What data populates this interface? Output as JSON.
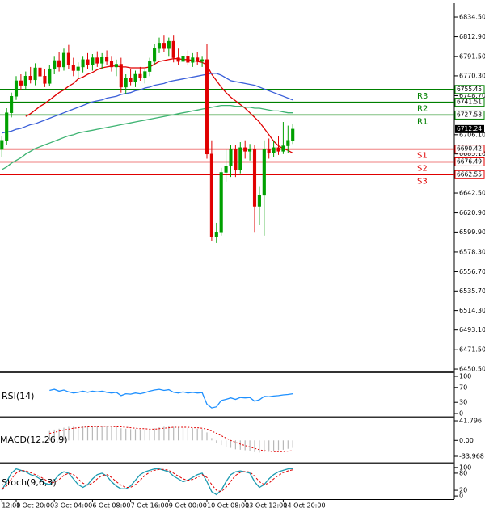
{
  "chart_data": [
    {
      "type": "candlestick",
      "categories": [
        "12:00",
        null,
        null,
        "1 Oct 20:00",
        null,
        null,
        null,
        null,
        null,
        null,
        null,
        "3 Oct 04:00",
        null,
        null,
        null,
        null,
        null,
        null,
        null,
        "6 Oct 08:00",
        null,
        null,
        null,
        null,
        null,
        null,
        null,
        "7 Oct 16:00",
        null,
        null,
        null,
        null,
        null,
        null,
        null,
        "9 Oct 00:00",
        null,
        null,
        null,
        null,
        null,
        null,
        null,
        "10 Oct 08:00",
        null,
        null,
        null,
        null,
        null,
        null,
        null,
        "13 Oct 12:00",
        null,
        null,
        null,
        null,
        null,
        null,
        null,
        "14 Oct 20:00",
        null,
        null
      ],
      "open": [
        6690,
        6700,
        6730,
        6748,
        6765,
        6760,
        6770,
        6766,
        6779,
        6770,
        6762,
        6778,
        6787,
        6780,
        6795,
        6782,
        6776,
        6780,
        6788,
        6782,
        6790,
        6784,
        6791,
        6786,
        6780,
        6783,
        6758,
        6768,
        6764,
        6772,
        6768,
        6775,
        6786,
        6800,
        6806,
        6800,
        6808,
        6790,
        6786,
        6792,
        6785,
        6790,
        6786,
        6788,
        6685,
        6595,
        6600,
        6665,
        6672,
        6690,
        6668,
        6692,
        6688,
        6690,
        6628,
        6640,
        6690,
        6686,
        6692,
        6688,
        6694,
        6700
      ],
      "high": [
        6705,
        6735,
        6752,
        6770,
        6772,
        6775,
        6780,
        6784,
        6786,
        6778,
        6782,
        6792,
        6796,
        6800,
        6804,
        6790,
        6785,
        6792,
        6795,
        6794,
        6797,
        6795,
        6798,
        6792,
        6788,
        6790,
        6772,
        6778,
        6776,
        6780,
        6778,
        6790,
        6805,
        6812,
        6815,
        6812,
        6815,
        6800,
        6796,
        6798,
        6795,
        6796,
        6792,
        6805,
        6700,
        6610,
        6670,
        6690,
        6695,
        6695,
        6698,
        6700,
        6696,
        6695,
        6650,
        6700,
        6702,
        6700,
        6705,
        6720,
        6716,
        6718
      ],
      "low": [
        6682,
        6695,
        6725,
        6744,
        6755,
        6756,
        6762,
        6760,
        6765,
        6758,
        6759,
        6772,
        6775,
        6776,
        6778,
        6770,
        6768,
        6774,
        6778,
        6776,
        6780,
        6778,
        6782,
        6775,
        6770,
        6752,
        6750,
        6760,
        6758,
        6765,
        6762,
        6770,
        6782,
        6795,
        6796,
        6792,
        6785,
        6782,
        6780,
        6782,
        6780,
        6782,
        6780,
        6680,
        6590,
        6588,
        6596,
        6655,
        6660,
        6660,
        6664,
        6680,
        6678,
        6600,
        6608,
        6596,
        6680,
        6682,
        6684,
        6685,
        6686,
        6696
      ],
      "close": [
        6700,
        6730,
        6748,
        6765,
        6760,
        6770,
        6766,
        6779,
        6770,
        6762,
        6778,
        6787,
        6780,
        6795,
        6782,
        6776,
        6780,
        6788,
        6782,
        6790,
        6784,
        6791,
        6786,
        6780,
        6783,
        6758,
        6768,
        6764,
        6772,
        6768,
        6775,
        6786,
        6800,
        6806,
        6800,
        6808,
        6790,
        6786,
        6792,
        6785,
        6790,
        6786,
        6788,
        6685,
        6595,
        6600,
        6665,
        6672,
        6690,
        6668,
        6692,
        6688,
        6690,
        6628,
        6640,
        6690,
        6686,
        6692,
        6688,
        6694,
        6700,
        6712.24
      ],
      "up_color": "#00a000",
      "down_color": "#e00000",
      "series": [
        {
          "color": "#e00000",
          "values": [
            null,
            null,
            null,
            null,
            null,
            6726,
            6729,
            6733,
            6737,
            6740,
            6744,
            6748,
            6752,
            6755,
            6759,
            6762,
            6767,
            6769,
            6772,
            6774,
            6777,
            6779,
            6780,
            6781,
            6781,
            6780,
            6780,
            6779,
            6779,
            6779,
            6779,
            6780,
            6783,
            6786,
            6787,
            6788,
            6789,
            6789,
            6788,
            6788,
            6787,
            6786,
            6785,
            6782,
            6772,
            6765,
            6758,
            6752,
            6747,
            6743,
            6739,
            6735,
            6730,
            6725,
            6720,
            6713,
            6706,
            6699,
            6694,
            6691,
            6689,
            6686
          ]
        },
        {
          "color": "#3a5fd9",
          "values": [
            6708,
            6709,
            6710,
            6712,
            6713,
            6715,
            6717,
            6718,
            6720,
            6722,
            6724,
            6726,
            6728,
            6730,
            6732,
            6734,
            6736,
            6738,
            6740,
            6742,
            6743,
            6744,
            6746,
            6747,
            6748,
            6750,
            6751,
            6752,
            6754,
            6755,
            6757,
            6758,
            6760,
            6761,
            6762,
            6764,
            6765,
            6766,
            6767,
            6768,
            6769,
            6770,
            6771,
            6772,
            6773,
            6773,
            6771,
            6768,
            6765,
            6764,
            6763,
            6762,
            6761,
            6760,
            6758,
            6756,
            6754,
            6752,
            6750,
            6748,
            6746,
            6744
          ]
        },
        {
          "color": "#3cb371",
          "values": [
            6668,
            6671,
            6675,
            6678,
            6681,
            6685,
            6688,
            6691,
            6693,
            6695,
            6697,
            6699,
            6701,
            6703,
            6705,
            6706,
            6708,
            6709,
            6710,
            6711,
            6712,
            6713,
            6714,
            6715,
            6716,
            6717,
            6718,
            6719,
            6720,
            6721,
            6722,
            6723,
            6724,
            6725,
            6726,
            6727,
            6728,
            6729,
            6730,
            6731,
            6732,
            6733,
            6734,
            6735,
            6736,
            6737,
            6738,
            6738,
            6738,
            6737,
            6737,
            6736,
            6736,
            6735,
            6735,
            6734,
            6733,
            6732,
            6732,
            6731,
            6730,
            6730
          ]
        }
      ],
      "levels": [
        {
          "label": "R3",
          "value": 6755.45,
          "color": "#008000"
        },
        {
          "label": "R2",
          "value": 6741.51,
          "color": "#008000"
        },
        {
          "label": "R1",
          "value": 6727.58,
          "color": "#008000"
        },
        {
          "label": "S1",
          "value": 6690.42,
          "color": "#e00000"
        },
        {
          "label": "S2",
          "value": 6676.49,
          "color": "#e00000"
        },
        {
          "label": "S3",
          "value": 6662.55,
          "color": "#e00000"
        }
      ],
      "ylim": [
        6447.9,
        6849.5
      ],
      "yticks": [
        {
          "value": 6834.5,
          "label": "6834.50"
        },
        {
          "value": 6812.9,
          "label": "6812.90"
        },
        {
          "value": 6791.5,
          "label": "6791.50"
        },
        {
          "value": 6770.3,
          "label": "6770.30"
        },
        {
          "value": 6748.7,
          "label": "6748.70"
        },
        {
          "value": 6706.1,
          "label": "6706.10"
        },
        {
          "value": 6685.1,
          "label": "6685.10"
        },
        {
          "value": 6642.5,
          "label": "6642.50"
        },
        {
          "value": 6620.9,
          "label": "6620.90"
        },
        {
          "value": 6599.9,
          "label": "6599.90"
        },
        {
          "value": 6578.3,
          "label": "6578.30"
        },
        {
          "value": 6556.7,
          "label": "6556.70"
        },
        {
          "value": 6535.7,
          "label": "6535.70"
        },
        {
          "value": 6514.3,
          "label": "6514.30"
        },
        {
          "value": 6493.1,
          "label": "6493.10"
        },
        {
          "value": 6471.5,
          "label": "6471.50"
        },
        {
          "value": 6450.5,
          "label": "6450.50"
        }
      ]
    },
    {
      "type": "line",
      "title": "RSI(14)",
      "ylim": [
        -6.5,
        106.5
      ],
      "yticks": [
        100,
        70,
        30,
        0
      ],
      "series": [
        {
          "color": "#1e90ff",
          "values": [
            null,
            null,
            null,
            null,
            null,
            null,
            null,
            null,
            null,
            null,
            62,
            65,
            60,
            63,
            58,
            55,
            57,
            60,
            57,
            60,
            58,
            60,
            57,
            55,
            57,
            48,
            53,
            52,
            55,
            53,
            56,
            60,
            63,
            65,
            62,
            64,
            57,
            55,
            58,
            55,
            57,
            55,
            56,
            25,
            15,
            18,
            35,
            38,
            42,
            38,
            43,
            42,
            43,
            33,
            37,
            46,
            45,
            47,
            48,
            50,
            51,
            53
          ]
        }
      ]
    },
    {
      "type": "macd",
      "title": "MACD(12,26,9)",
      "ylim": [
        -46,
        47
      ],
      "yticks": [
        41.796,
        {
          "value": 0,
          "label": "0.00"
        },
        -33.968
      ],
      "histogram": {
        "color": "#b8b8b8",
        "values": [
          null,
          null,
          null,
          null,
          null,
          null,
          null,
          null,
          null,
          null,
          20,
          23,
          25,
          27,
          29,
          29,
          29,
          30,
          30,
          30,
          30,
          30,
          30,
          29,
          28,
          26,
          25,
          24,
          24,
          23,
          23,
          24,
          26,
          28,
          29,
          30,
          29,
          28,
          28,
          27,
          26,
          25,
          24,
          17,
          5,
          -5,
          -10,
          -14,
          -16,
          -19,
          -20,
          -21,
          -22,
          -25,
          -26,
          -25,
          -24,
          -23,
          -21,
          -20,
          -18,
          -16
        ]
      },
      "signal": {
        "color": "#e00000",
        "values": [
          null,
          null,
          null,
          null,
          null,
          null,
          null,
          null,
          null,
          null,
          15,
          17,
          20,
          22,
          24,
          26,
          27,
          28,
          29,
          29,
          29,
          30,
          30,
          30,
          29,
          29,
          28,
          27,
          26,
          25,
          25,
          24,
          24,
          25,
          26,
          27,
          28,
          28,
          28,
          28,
          27,
          27,
          26,
          24,
          20,
          15,
          10,
          5,
          0,
          -4,
          -8,
          -11,
          -14,
          -17,
          -20,
          -22,
          -23,
          -24,
          -24,
          -24,
          -23,
          -22
        ]
      }
    },
    {
      "type": "stochastic",
      "title": "Stoch(9,6,3)",
      "ylim": [
        -11,
        111
      ],
      "yticks": [
        100,
        80,
        20,
        0
      ],
      "series": [
        {
          "color": "#1a9ab0",
          "values": [
            20,
            50,
            80,
            95,
            90,
            85,
            75,
            70,
            60,
            45,
            40,
            55,
            75,
            85,
            80,
            60,
            40,
            30,
            40,
            60,
            75,
            80,
            70,
            50,
            35,
            25,
            25,
            35,
            55,
            75,
            85,
            90,
            95,
            95,
            90,
            85,
            70,
            60,
            50,
            55,
            65,
            75,
            80,
            50,
            15,
            5,
            20,
            50,
            75,
            85,
            88,
            85,
            80,
            50,
            30,
            40,
            60,
            75,
            85,
            90,
            95,
            96
          ]
        },
        {
          "color": "#e00000",
          "dashed": true,
          "values": [
            25,
            35,
            60,
            80,
            90,
            88,
            82,
            75,
            68,
            58,
            48,
            48,
            58,
            72,
            80,
            75,
            60,
            45,
            38,
            45,
            60,
            72,
            75,
            65,
            50,
            38,
            30,
            30,
            40,
            55,
            72,
            83,
            90,
            93,
            93,
            90,
            80,
            70,
            60,
            55,
            58,
            65,
            75,
            65,
            40,
            20,
            15,
            30,
            52,
            72,
            83,
            86,
            84,
            70,
            50,
            40,
            45,
            60,
            72,
            82,
            88,
            92
          ]
        }
      ]
    }
  ]
}
